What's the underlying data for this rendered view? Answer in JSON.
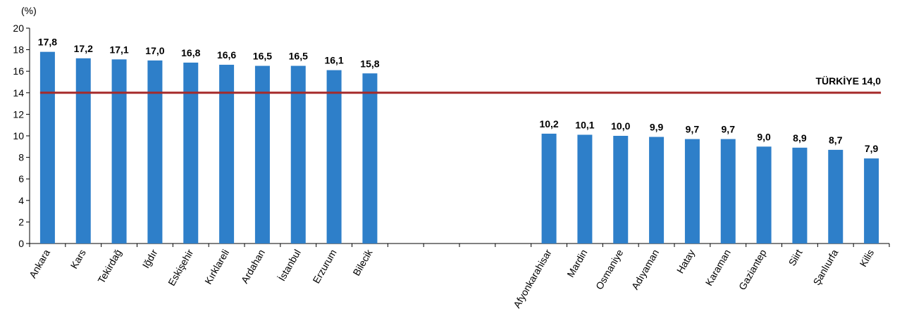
{
  "chart_data": {
    "type": "bar",
    "ylabel": "(%)",
    "ylim": [
      0,
      20
    ],
    "ytick_step": 2,
    "grid": false,
    "bar_color": "#2e7fc9",
    "categories": [
      "Ankara",
      "Kars",
      "Tekirdağ",
      "Iğdır",
      "Eskişehir",
      "Kırklareli",
      "Ardahan",
      "İstanbul",
      "Erzurum",
      "Bilecik",
      "",
      "",
      "",
      "",
      "Afyonkarahisar",
      "Mardin",
      "Osmaniye",
      "Adıyaman",
      "Hatay",
      "Karaman",
      "Gaziantep",
      "Siirt",
      "Şanlıurfa",
      "Kilis"
    ],
    "values": [
      17.8,
      17.2,
      17.1,
      17.0,
      16.8,
      16.6,
      16.5,
      16.5,
      16.1,
      15.8,
      null,
      null,
      null,
      null,
      10.2,
      10.1,
      10.0,
      9.9,
      9.7,
      9.7,
      9.0,
      8.9,
      8.7,
      7.9
    ],
    "value_labels": [
      "17,8",
      "17,2",
      "17,1",
      "17,0",
      "16,8",
      "16,6",
      "16,5",
      "16,5",
      "16,1",
      "15,8",
      "",
      "",
      "",
      "",
      "10,2",
      "10,1",
      "10,0",
      "9,9",
      "9,7",
      "9,7",
      "9,0",
      "8,9",
      "8,7",
      "7,9"
    ],
    "reference_line": {
      "value": 14.0,
      "label": "TÜRKİYE 14,0",
      "color": "#a52a2a"
    }
  }
}
